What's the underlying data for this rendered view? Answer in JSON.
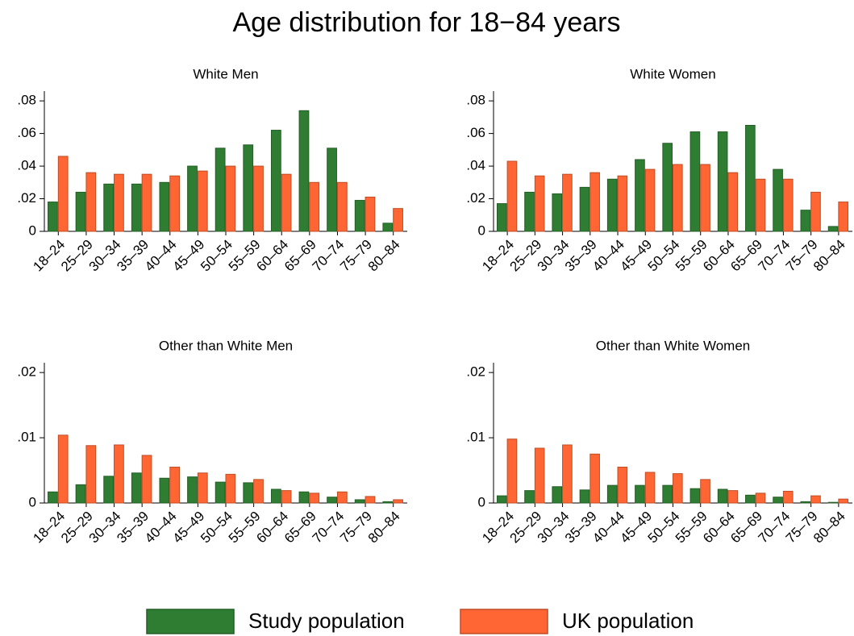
{
  "title": "Age distribution for 18−84 years",
  "legend": [
    {
      "name": "Study population",
      "color": "#2e7d32"
    },
    {
      "name": "UK population",
      "color": "#ff6633"
    }
  ],
  "chart_data": [
    {
      "type": "bar",
      "title": "White Men",
      "categories": [
        "18–24",
        "25–29",
        "30–34",
        "35–39",
        "40–44",
        "45–49",
        "50–54",
        "55–59",
        "60–64",
        "65–69",
        "70–74",
        "75–79",
        "80–84"
      ],
      "series": [
        {
          "values": [
            0.018,
            0.024,
            0.029,
            0.029,
            0.03,
            0.04,
            0.051,
            0.053,
            0.062,
            0.074,
            0.051,
            0.019,
            0.005
          ]
        },
        {
          "values": [
            0.046,
            0.036,
            0.035,
            0.035,
            0.034,
            0.037,
            0.04,
            0.04,
            0.035,
            0.03,
            0.03,
            0.021,
            0.014
          ]
        }
      ],
      "ylim": [
        0,
        0.086
      ],
      "yticks": [
        0,
        {
          "value": 0.02,
          "label": ".02"
        },
        {
          "value": 0.04,
          "label": ".04"
        },
        {
          "value": 0.06,
          "label": ".06"
        },
        {
          "value": 0.08,
          "label": ".08"
        }
      ]
    },
    {
      "type": "bar",
      "title": "White Women",
      "categories": [
        "18–24",
        "25–29",
        "30–34",
        "35–39",
        "40–44",
        "45–49",
        "50–54",
        "55–59",
        "60–64",
        "65–69",
        "70–74",
        "75–79",
        "80–84"
      ],
      "series": [
        {
          "values": [
            0.017,
            0.024,
            0.023,
            0.027,
            0.032,
            0.044,
            0.054,
            0.061,
            0.061,
            0.065,
            0.038,
            0.013,
            0.003
          ]
        },
        {
          "values": [
            0.043,
            0.034,
            0.035,
            0.036,
            0.034,
            0.038,
            0.041,
            0.041,
            0.036,
            0.032,
            0.032,
            0.024,
            0.018
          ]
        }
      ],
      "ylim": [
        0,
        0.086
      ],
      "yticks": [
        0,
        {
          "value": 0.02,
          "label": ".02"
        },
        {
          "value": 0.04,
          "label": ".04"
        },
        {
          "value": 0.06,
          "label": ".06"
        },
        {
          "value": 0.08,
          "label": ".08"
        }
      ]
    },
    {
      "type": "bar",
      "title": "Other than White Men",
      "categories": [
        "18–24",
        "25–29",
        "30–34",
        "35–39",
        "40–44",
        "45–49",
        "50–54",
        "55–59",
        "60–64",
        "65–69",
        "70–74",
        "75–79",
        "80–84"
      ],
      "series": [
        {
          "values": [
            0.0017,
            0.0028,
            0.0041,
            0.0046,
            0.0038,
            0.004,
            0.0032,
            0.0031,
            0.0021,
            0.0017,
            0.0009,
            0.0005,
            0.0002
          ]
        },
        {
          "values": [
            0.0104,
            0.0088,
            0.0089,
            0.0073,
            0.0055,
            0.0046,
            0.0044,
            0.0036,
            0.0019,
            0.0015,
            0.0017,
            0.001,
            0.0005
          ]
        }
      ],
      "ylim": [
        0,
        0.0215
      ],
      "yticks": [
        0,
        {
          "value": 0.01,
          "label": ".01"
        },
        {
          "value": 0.02,
          "label": ".02"
        }
      ]
    },
    {
      "type": "bar",
      "title": "Other than White Women",
      "categories": [
        "18–24",
        "25–29",
        "30–34",
        "35–39",
        "40–44",
        "45–49",
        "50–54",
        "55–59",
        "60–64",
        "65–69",
        "70–74",
        "75–79",
        "80–84"
      ],
      "series": [
        {
          "values": [
            0.0011,
            0.0019,
            0.0025,
            0.002,
            0.0027,
            0.0027,
            0.0027,
            0.0022,
            0.0021,
            0.0012,
            0.0009,
            0.0002,
            0.0001
          ]
        },
        {
          "values": [
            0.0098,
            0.0084,
            0.0089,
            0.0075,
            0.0055,
            0.0047,
            0.0045,
            0.0036,
            0.0019,
            0.0015,
            0.0018,
            0.0011,
            0.0006
          ]
        }
      ],
      "ylim": [
        0,
        0.0215
      ],
      "yticks": [
        0,
        {
          "value": 0.01,
          "label": ".01"
        },
        {
          "value": 0.02,
          "label": ".02"
        }
      ]
    }
  ]
}
